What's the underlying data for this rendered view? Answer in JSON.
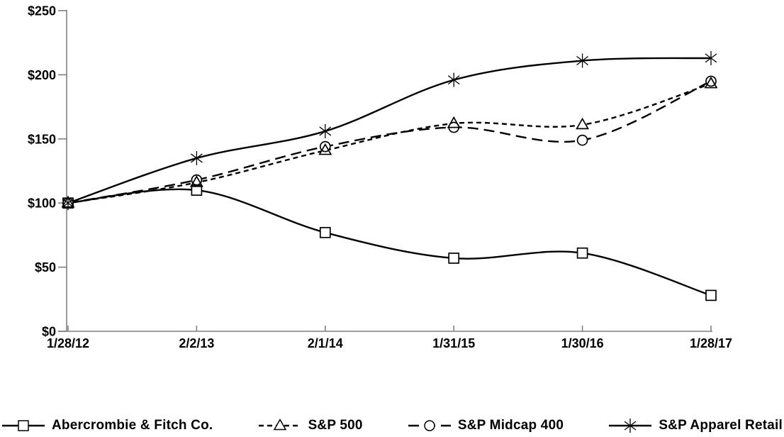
{
  "chart_data": {
    "type": "line",
    "title": "",
    "xlabel": "",
    "ylabel": "",
    "categories": [
      "1/28/12",
      "2/2/13",
      "2/1/14",
      "1/31/15",
      "1/30/16",
      "1/28/17"
    ],
    "y_tick_labels": [
      "$0",
      "$50",
      "$100",
      "$150",
      "$200",
      "$250"
    ],
    "y_tick_values": [
      0,
      50,
      100,
      150,
      200,
      250
    ],
    "ylim": [
      0,
      250
    ],
    "grid": false,
    "legend_position": "bottom",
    "series": [
      {
        "name": "Abercrombie & Fitch Co.",
        "marker": "square",
        "line_style": "solid",
        "values": [
          100,
          110,
          77,
          57,
          61,
          28
        ]
      },
      {
        "name": "S&P 500",
        "marker": "triangle",
        "line_style": "dash",
        "values": [
          100,
          116,
          141,
          162,
          161,
          193
        ]
      },
      {
        "name": "S&P Midcap 400",
        "marker": "circle",
        "line_style": "longdash",
        "values": [
          100,
          118,
          144,
          159,
          149,
          195
        ]
      },
      {
        "name": "S&P Apparel Retail",
        "marker": "star",
        "line_style": "solid",
        "values": [
          100,
          135,
          156,
          196,
          211,
          213
        ]
      }
    ],
    "colors": {
      "series_line": "#000000",
      "axis": "#808080",
      "text": "#000000",
      "background": "#ffffff",
      "marker_fill": "#ffffff"
    }
  }
}
